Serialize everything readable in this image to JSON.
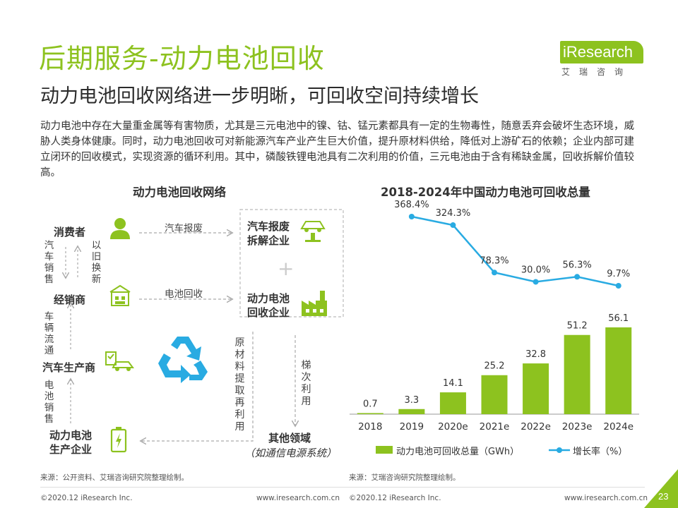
{
  "header": {
    "title": "后期服务-动力电池回收",
    "subtitle": "动力电池回收网络进一步明晰，可回收空间持续增长",
    "logo_word": "iResearch",
    "logo_cn": "艾瑞咨询"
  },
  "intro": "动力电池中存在大量重金属等有害物质，尤其是三元电池中的镍、钴、锰元素都具有一定的生物毒性，随意丢弃会破坏生态环境，威胁人类身体健康。同时，动力电池回收可对新能源汽车产业产生巨大价值，提升原材料供给，降低对上游矿石的依赖；企业内部可建立闭环的回收模式，实现资源的循环利用。其中，磷酸铁锂电池具有二次利用的价值，三元电池由于含有稀缺金属，回收拆解价值较高。",
  "network": {
    "title": "动力电池回收网络",
    "nodes": {
      "consumer": "消费者",
      "dealer": "经销商",
      "carmaker": "汽车生产商",
      "battery_maker": "动力电池\n生产企业",
      "scrap": "汽车报废\n拆解企业",
      "recycler": "动力电池\n回收企业",
      "other": "其他领域",
      "other_note": "（如通信电源系统）",
      "plus": "+"
    },
    "labels": {
      "car_scrap": "汽车报废",
      "battery_recycle": "电池回收",
      "consumer_to_dealer": "汽车销售",
      "dealer_to_consumer": "以旧换新",
      "vehicle_flow": "车辆流通",
      "battery_sales": "电池销售",
      "raw_material": "原材料提取再利用",
      "cascade": "梯次利用"
    },
    "icons": {
      "consumer": "person-icon",
      "dealer": "store-icon",
      "carmaker": "car-factory-icon",
      "battery_maker": "battery-icon",
      "scrap": "car-lift-icon",
      "recycler": "factory-icon",
      "recycle": "recycle-icon"
    },
    "source": "来源：公开资料、艾瑞咨询研究院整理绘制。"
  },
  "chart_data": {
    "type": "bar",
    "title": "2018-2024年中国动力电池可回收总量",
    "categories": [
      "2018",
      "2019",
      "2020e",
      "2021e",
      "2022e",
      "2023e",
      "2024e"
    ],
    "series": [
      {
        "name": "动力电池可回收总量（GWh）",
        "type": "bar",
        "values": [
          0.7,
          3.3,
          14.1,
          25.2,
          32.8,
          51.2,
          56.1
        ],
        "color": "#8dc21f"
      },
      {
        "name": "增长率（%）",
        "type": "line",
        "x": [
          "2019",
          "2020e",
          "2021e",
          "2022e",
          "2023e",
          "2024e"
        ],
        "values": [
          368.4,
          324.3,
          78.3,
          30.0,
          56.3,
          9.7
        ],
        "labels": [
          "368.4%",
          "324.3%",
          "78.3%",
          "30.0%",
          "56.3%",
          "9.7%"
        ],
        "color": "#29abe2"
      }
    ],
    "bar_labels": [
      "0.7",
      "3.3",
      "14.1",
      "25.2",
      "32.8",
      "51.2",
      "56.1"
    ],
    "legend_position": "bottom",
    "source": "来源：艾瑞咨询研究院整理绘制。"
  },
  "footer": {
    "left_copy": "©2020.12 iResearch Inc.",
    "left_url": "www.iresearch.com.cn",
    "right_copy": "©2020.12 iResearch Inc.",
    "right_url": "www.iresearch.com.cn",
    "page": "23"
  },
  "colors": {
    "brand_green": "#8dc21f",
    "line_blue": "#29abe2"
  }
}
